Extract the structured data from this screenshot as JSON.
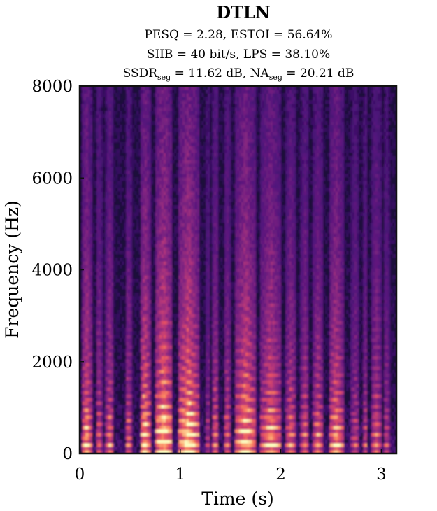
{
  "chart_data": {
    "type": "heatmap",
    "title": "DTLN",
    "metrics": {
      "line1": "PESQ = 2.28, ESTOI = 56.64%",
      "line2": "SIIB = 40 bit/s, LPS = 38.10%",
      "line3_a": "SSDR",
      "line3_a_sub": "seg",
      "line3_b": " = 11.62 dB, NA",
      "line3_b_sub": "seg",
      "line3_c": " = 20.21 dB"
    },
    "xlabel": "Time (s)",
    "ylabel": "Frequency (Hz)",
    "xlim": [
      0,
      3.15
    ],
    "ylim": [
      0,
      8000
    ],
    "x_ticks": [
      0,
      1,
      2,
      3
    ],
    "x_tick_labels": [
      "0",
      "1",
      "2",
      "3"
    ],
    "y_ticks": [
      0,
      2000,
      4000,
      6000,
      8000
    ],
    "y_tick_labels": [
      "0",
      "2000",
      "4000",
      "6000",
      "8000"
    ],
    "grid": false,
    "colormap": "magma",
    "colors": {
      "background": "#1c0f3a",
      "low": "#3b1466",
      "mid": "#a3307e",
      "high": "#f0605d",
      "peak": "#fcfdbf",
      "frame": "#111111"
    },
    "speech_segments": [
      {
        "start": 0.02,
        "end": 0.12,
        "energy": 0.75,
        "f0": 180
      },
      {
        "start": 0.16,
        "end": 0.22,
        "energy": 0.55,
        "f0": 200
      },
      {
        "start": 0.26,
        "end": 0.34,
        "energy": 0.6,
        "f0": 190
      },
      {
        "start": 0.45,
        "end": 0.52,
        "energy": 0.55,
        "f0": 200
      },
      {
        "start": 0.6,
        "end": 0.7,
        "energy": 0.85,
        "f0": 220
      },
      {
        "start": 0.75,
        "end": 0.92,
        "energy": 0.95,
        "f0": 240
      },
      {
        "start": 0.98,
        "end": 1.18,
        "energy": 0.95,
        "f0": 230
      },
      {
        "start": 1.25,
        "end": 1.3,
        "energy": 0.4,
        "f0": 200
      },
      {
        "start": 1.32,
        "end": 1.38,
        "energy": 0.6,
        "f0": 210
      },
      {
        "start": 1.43,
        "end": 1.5,
        "energy": 0.55,
        "f0": 190
      },
      {
        "start": 1.55,
        "end": 1.75,
        "energy": 0.85,
        "f0": 230
      },
      {
        "start": 1.8,
        "end": 2.0,
        "energy": 0.75,
        "f0": 210
      },
      {
        "start": 2.05,
        "end": 2.15,
        "energy": 0.6,
        "f0": 200
      },
      {
        "start": 2.2,
        "end": 2.28,
        "energy": 0.55,
        "f0": 190
      },
      {
        "start": 2.32,
        "end": 2.42,
        "energy": 0.6,
        "f0": 200
      },
      {
        "start": 2.48,
        "end": 2.62,
        "energy": 0.75,
        "f0": 210
      },
      {
        "start": 2.7,
        "end": 2.78,
        "energy": 0.45,
        "f0": 190
      },
      {
        "start": 2.82,
        "end": 2.86,
        "energy": 0.5,
        "f0": 180
      },
      {
        "start": 2.9,
        "end": 3.0,
        "energy": 0.55,
        "f0": 190
      },
      {
        "start": 3.02,
        "end": 3.08,
        "energy": 0.45,
        "f0": 180
      }
    ]
  }
}
